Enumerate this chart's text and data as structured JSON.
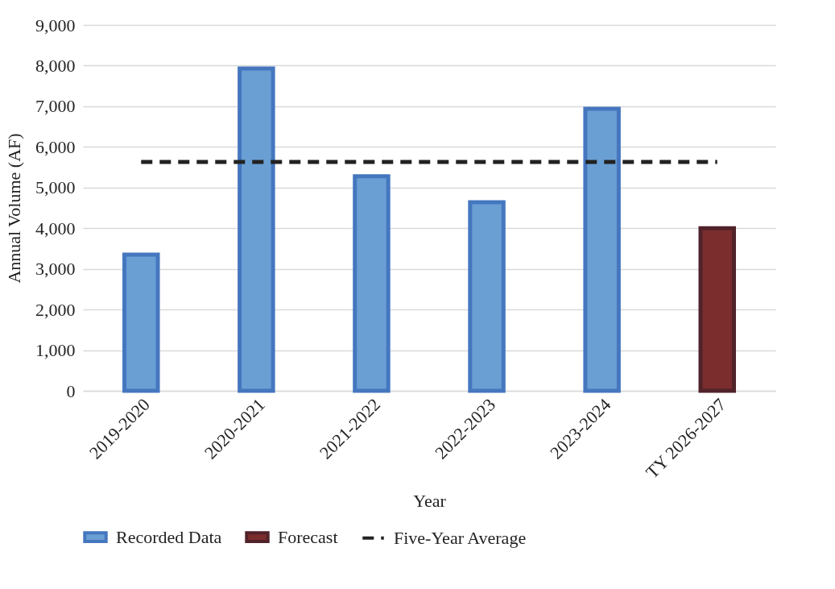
{
  "chart_data": {
    "type": "bar",
    "xlabel": "Year",
    "ylabel": "Annual Volume (AF)",
    "categories": [
      "2019-2020",
      "2020-2021",
      "2021-2022",
      "2022-2023",
      "2023-2024",
      "TY 2026-2027"
    ],
    "series": [
      {
        "name": "Recorded Data",
        "color": "#6a9fd4",
        "values": [
          3350,
          7930,
          5280,
          4640,
          6940,
          null
        ]
      },
      {
        "name": "Forecast",
        "color": "#7b2d2d",
        "values": [
          null,
          null,
          null,
          null,
          null,
          4000
        ]
      },
      {
        "name": "Five-Year Average",
        "type": "line",
        "line_style": "dashed",
        "color": "#222222",
        "values": [
          5630,
          5630,
          5630,
          5630,
          5630,
          5630
        ]
      }
    ],
    "ylim": [
      0,
      9000
    ],
    "yticks": [
      {
        "value": 0,
        "label": "0"
      },
      {
        "value": 1000,
        "label": "1,000"
      },
      {
        "value": 2000,
        "label": "2,000"
      },
      {
        "value": 3000,
        "label": "3,000"
      },
      {
        "value": 4000,
        "label": "4,000"
      },
      {
        "value": 5000,
        "label": "5,000"
      },
      {
        "value": 6000,
        "label": "6,000"
      },
      {
        "value": 7000,
        "label": "7,000"
      },
      {
        "value": 8000,
        "label": "8,000"
      },
      {
        "value": 9000,
        "label": "9,000"
      }
    ],
    "grid": "y",
    "legend": "bottom"
  }
}
